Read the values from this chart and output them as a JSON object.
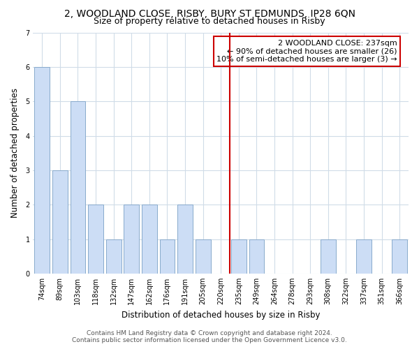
{
  "title": "2, WOODLAND CLOSE, RISBY, BURY ST EDMUNDS, IP28 6QN",
  "subtitle": "Size of property relative to detached houses in Risby",
  "xlabel": "Distribution of detached houses by size in Risby",
  "ylabel": "Number of detached properties",
  "categories": [
    "74sqm",
    "89sqm",
    "103sqm",
    "118sqm",
    "132sqm",
    "147sqm",
    "162sqm",
    "176sqm",
    "191sqm",
    "205sqm",
    "220sqm",
    "235sqm",
    "249sqm",
    "264sqm",
    "278sqm",
    "293sqm",
    "308sqm",
    "322sqm",
    "337sqm",
    "351sqm",
    "366sqm"
  ],
  "values": [
    6,
    3,
    5,
    2,
    1,
    2,
    2,
    1,
    2,
    1,
    0,
    1,
    1,
    0,
    0,
    0,
    1,
    0,
    1,
    0,
    1
  ],
  "bar_color": "#ccddf5",
  "bar_edge_color": "#88aacc",
  "vline_x_index": 11,
  "vline_color": "#cc0000",
  "annotation_title": "2 WOODLAND CLOSE: 237sqm",
  "annotation_line1": "← 90% of detached houses are smaller (26)",
  "annotation_line2": "10% of semi-detached houses are larger (3) →",
  "annotation_box_color": "#ffffff",
  "annotation_box_edge": "#cc0000",
  "ylim": [
    0,
    7
  ],
  "yticks": [
    0,
    1,
    2,
    3,
    4,
    5,
    6,
    7
  ],
  "footer_line1": "Contains HM Land Registry data © Crown copyright and database right 2024.",
  "footer_line2": "Contains public sector information licensed under the Open Government Licence v3.0.",
  "bg_color": "#ffffff",
  "grid_color": "#d0dce8",
  "title_fontsize": 10,
  "subtitle_fontsize": 9,
  "axis_label_fontsize": 8.5,
  "tick_fontsize": 7,
  "footer_fontsize": 6.5,
  "annotation_fontsize": 8
}
